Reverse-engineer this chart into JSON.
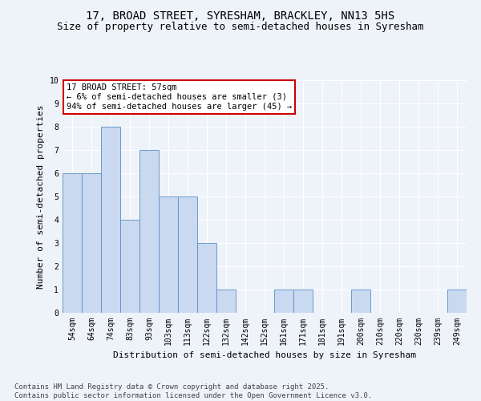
{
  "title": "17, BROAD STREET, SYRESHAM, BRACKLEY, NN13 5HS",
  "subtitle": "Size of property relative to semi-detached houses in Syresham",
  "xlabel": "Distribution of semi-detached houses by size in Syresham",
  "ylabel": "Number of semi-detached properties",
  "categories": [
    "54sqm",
    "64sqm",
    "74sqm",
    "83sqm",
    "93sqm",
    "103sqm",
    "113sqm",
    "122sqm",
    "132sqm",
    "142sqm",
    "152sqm",
    "161sqm",
    "171sqm",
    "181sqm",
    "191sqm",
    "200sqm",
    "210sqm",
    "220sqm",
    "230sqm",
    "239sqm",
    "249sqm"
  ],
  "values": [
    6,
    6,
    8,
    4,
    7,
    5,
    5,
    3,
    1,
    0,
    0,
    1,
    1,
    0,
    0,
    1,
    0,
    0,
    0,
    0,
    1
  ],
  "bar_color": "#c9d9f0",
  "bar_edge_color": "#5a8fc4",
  "annotation_text": "17 BROAD STREET: 57sqm\n← 6% of semi-detached houses are smaller (3)\n94% of semi-detached houses are larger (45) →",
  "annotation_box_color": "#ffffff",
  "annotation_box_edgecolor": "#cc0000",
  "footnote": "Contains HM Land Registry data © Crown copyright and database right 2025.\nContains public sector information licensed under the Open Government Licence v3.0.",
  "ylim": [
    0,
    10
  ],
  "yticks": [
    0,
    1,
    2,
    3,
    4,
    5,
    6,
    7,
    8,
    9,
    10
  ],
  "background_color": "#eef2f9",
  "grid_color": "#ffffff",
  "title_fontsize": 10,
  "subtitle_fontsize": 9,
  "axis_label_fontsize": 8,
  "tick_fontsize": 7,
  "annotation_fontsize": 7.5,
  "footnote_fontsize": 6.5
}
